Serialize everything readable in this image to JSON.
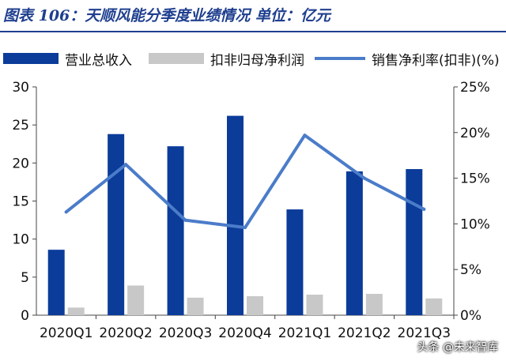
{
  "title": "图表 106：天顺风能分季度业绩情况  单位：亿元",
  "colors": {
    "revenue": "#0b3c9a",
    "profit": "#c8c8c8",
    "margin": "#4b7cc9",
    "title": "#1f3f8f"
  },
  "legend": {
    "revenue": "营业总收入",
    "profit": "扣非归母净利润",
    "margin": "销售净利率(扣非)(%)"
  },
  "watermark": "头条 @未来智库",
  "chart_data": {
    "type": "bar",
    "categories": [
      "2020Q1",
      "2020Q2",
      "2020Q3",
      "2020Q4",
      "2021Q1",
      "2021Q2",
      "2021Q3"
    ],
    "series": [
      {
        "name": "营业总收入",
        "type": "bar",
        "axis": "left",
        "values": [
          8.6,
          23.8,
          22.2,
          26.2,
          13.9,
          18.9,
          19.2
        ]
      },
      {
        "name": "扣非归母净利润",
        "type": "bar",
        "axis": "left",
        "values": [
          1.0,
          3.9,
          2.3,
          2.5,
          2.7,
          2.8,
          2.2
        ]
      },
      {
        "name": "销售净利率(扣非)(%)",
        "type": "line",
        "axis": "right",
        "values": [
          11.3,
          16.5,
          10.4,
          9.6,
          19.7,
          15.0,
          11.6
        ]
      }
    ],
    "left_axis": {
      "ylim": [
        0,
        30
      ],
      "ticks": [
        0,
        5,
        10,
        15,
        20,
        25,
        30
      ],
      "tick_labels": [
        "0",
        "5",
        "10",
        "15",
        "20",
        "25",
        "30"
      ]
    },
    "right_axis": {
      "ylim": [
        0,
        25
      ],
      "ticks": [
        0,
        5,
        10,
        15,
        20,
        25
      ],
      "tick_labels": [
        "0%",
        "5%",
        "10%",
        "15%",
        "20%",
        "25%"
      ]
    },
    "grid": false,
    "legend_position": "top"
  }
}
